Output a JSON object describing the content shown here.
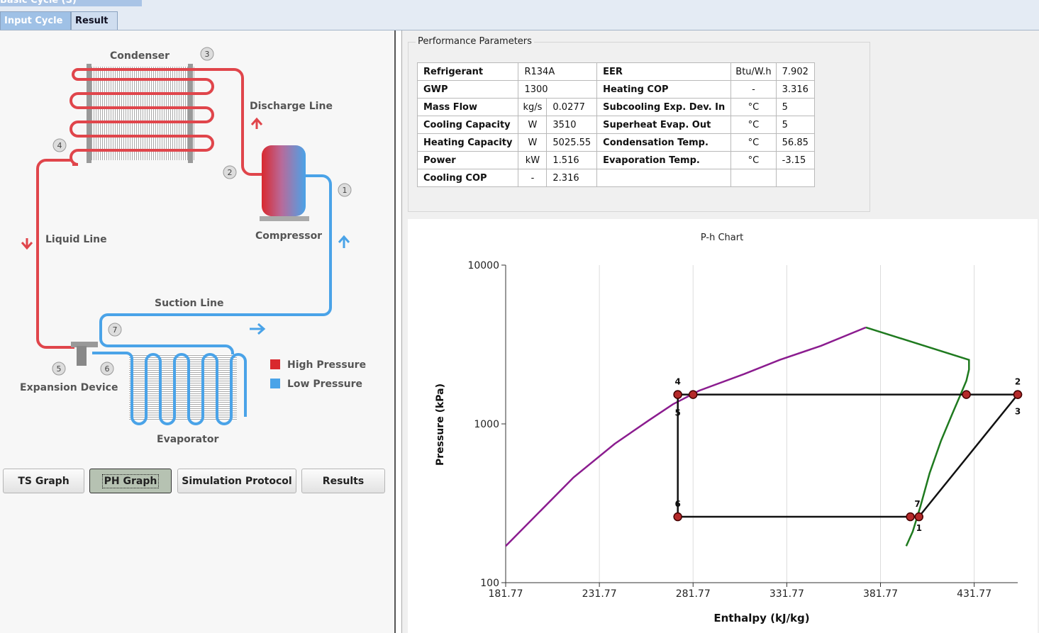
{
  "window": {
    "title": "Basic Cycle (S)"
  },
  "tabs": [
    {
      "label": "Input Cycle"
    },
    {
      "label": "Result"
    }
  ],
  "diagram": {
    "labels": {
      "condenser": "Condenser",
      "discharge_line": "Discharge Line",
      "compressor": "Compressor",
      "liquid_line": "Liquid Line",
      "suction_line": "Suction Line",
      "expansion_device": "Expansion Device",
      "evaporator": "Evaporator"
    },
    "points": [
      "1",
      "2",
      "3",
      "4",
      "5",
      "6",
      "7"
    ],
    "legend": {
      "high": "High Pressure",
      "low": "Low Pressure"
    },
    "colors": {
      "high": "#d9292e",
      "low": "#4aa3e8"
    }
  },
  "buttons": {
    "ts_graph": "TS Graph",
    "ph_graph": "PH Graph",
    "simulation_protocol": "Simulation Protocol",
    "results": "Results"
  },
  "performance": {
    "title": "Performance Parameters",
    "rows": [
      {
        "l1": "Refrigerant",
        "u1": "",
        "v1": "R134A",
        "l2": "EER",
        "u2": "Btu/W.h",
        "v2": "7.902"
      },
      {
        "l1": "GWP",
        "u1": "",
        "v1": "1300",
        "l2": "Heating COP",
        "u2": "-",
        "v2": "3.316"
      },
      {
        "l1": "Mass Flow",
        "u1": "kg/s",
        "v1": "0.0277",
        "l2": "Subcooling Exp. Dev. In",
        "u2": "°C",
        "v2": "5"
      },
      {
        "l1": "Cooling Capacity",
        "u1": "W",
        "v1": "3510",
        "l2": "Superheat Evap. Out",
        "u2": "°C",
        "v2": "5"
      },
      {
        "l1": "Heating Capacity",
        "u1": "W",
        "v1": "5025.55",
        "l2": "Condensation Temp.",
        "u2": "°C",
        "v2": "56.85"
      },
      {
        "l1": "Power",
        "u1": "kW",
        "v1": "1.516",
        "l2": "Evaporation Temp.",
        "u2": "°C",
        "v2": "-3.15"
      },
      {
        "l1": "Cooling COP",
        "u1": "-",
        "v1": "2.316",
        "l2": "",
        "u2": "",
        "v2": ""
      }
    ]
  },
  "chart_data": {
    "type": "line",
    "title": "P-h Chart",
    "xlabel": "Enthalpy (kJ/kg)",
    "ylabel": "Pressure (kPa)",
    "xlim": [
      181.77,
      455
    ],
    "ylim": [
      100,
      10000
    ],
    "yscale": "log",
    "x_ticks": [
      "181.77",
      "231.77",
      "281.77",
      "331.77",
      "381.77",
      "431.77"
    ],
    "y_ticks": [
      "100",
      "1000",
      "10000"
    ],
    "grid": true,
    "series": [
      {
        "color": "#8b1c8f",
        "points": [
          [
            181.77,
            170
          ],
          [
            218,
            460
          ],
          [
            240,
            750
          ],
          [
            258,
            1050
          ],
          [
            271,
            1330
          ],
          [
            285,
            1620
          ],
          [
            309,
            2060
          ],
          [
            328,
            2530
          ],
          [
            350,
            3100
          ],
          [
            374,
            4050
          ]
        ]
      },
      {
        "color": "#1f7a1f",
        "points": [
          [
            374,
            4050
          ],
          [
            429,
            2530
          ],
          [
            429,
            2200
          ],
          [
            427.6,
            1870
          ],
          [
            424.5,
            1530
          ],
          [
            420,
            1150
          ],
          [
            414,
            780
          ],
          [
            408,
            490
          ],
          [
            403,
            300
          ],
          [
            399,
            210
          ],
          [
            395.5,
            170
          ]
        ]
      },
      {
        "color": "#111111",
        "points": [
          [
            402.3,
            260
          ],
          [
            455,
            1530
          ],
          [
            273.6,
            1530
          ],
          [
            273.6,
            260
          ],
          [
            402.3,
            260
          ]
        ]
      }
    ],
    "markers": [
      {
        "label": "1",
        "x": 402.3,
        "y": 260
      },
      {
        "label": "2",
        "x": 455,
        "y": 1530
      },
      {
        "label": "3",
        "x": 455,
        "y": 1530
      },
      {
        "label": "4",
        "x": 273.6,
        "y": 1530
      },
      {
        "label": "5",
        "x": 273.6,
        "y": 1530
      },
      {
        "label": "6",
        "x": 273.6,
        "y": 260
      },
      {
        "label": "7",
        "x": 397.7,
        "y": 260
      },
      {
        "x": 281.77,
        "y": 1530
      },
      {
        "x": 427.6,
        "y": 1530
      }
    ]
  }
}
